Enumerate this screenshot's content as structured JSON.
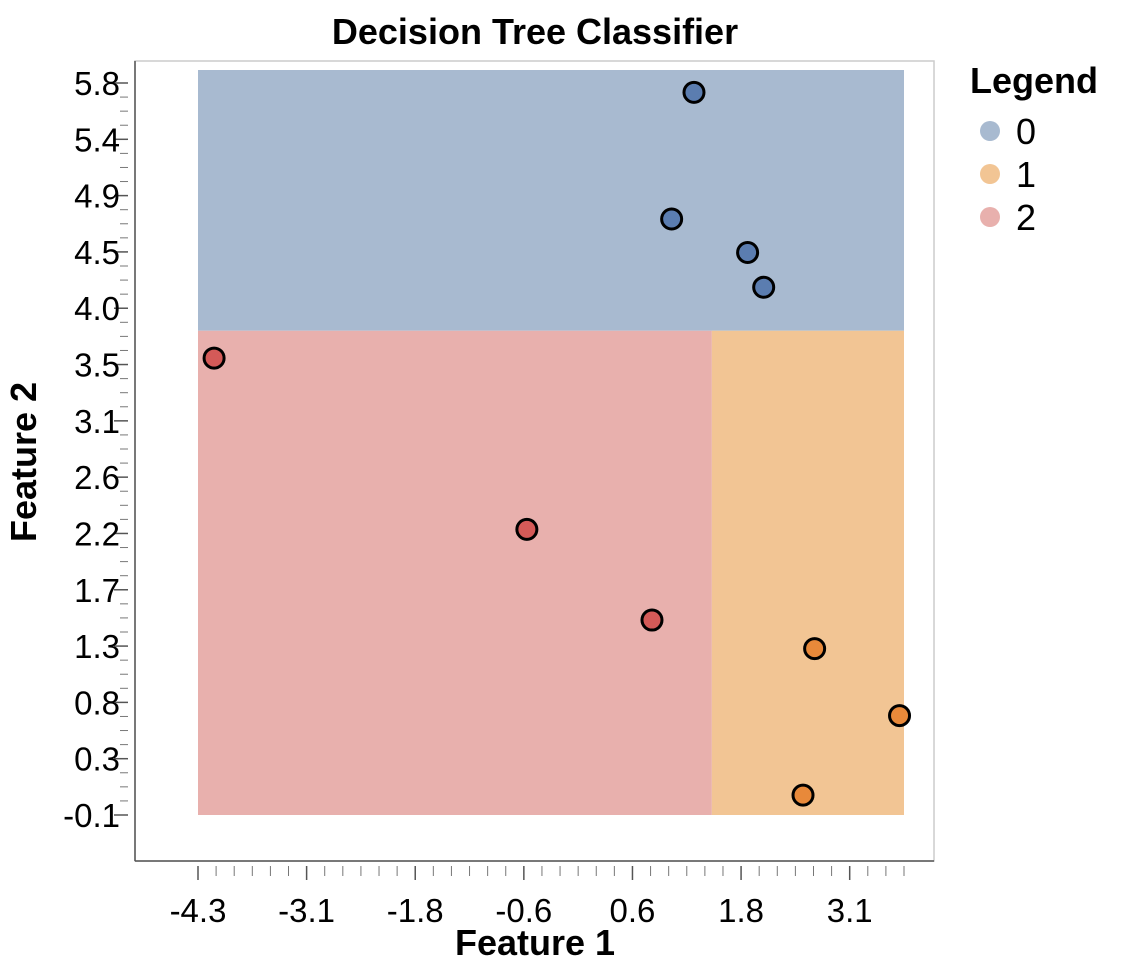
{
  "chart_data": {
    "type": "scatter",
    "title": "Decision Tree Classifier",
    "xlabel": "Feature 1",
    "ylabel": "Feature 2",
    "xlim": [
      -4.3,
      3.6
    ],
    "ylim": [
      -0.1,
      5.9
    ],
    "x_ticks": [
      "-4.3",
      "-3.1",
      "-1.8",
      "-0.6",
      "0.6",
      "1.8",
      "3.1"
    ],
    "y_ticks": [
      "5.8",
      "5.4",
      "4.9",
      "4.5",
      "4.0",
      "3.5",
      "3.1",
      "2.6",
      "2.2",
      "1.7",
      "1.3",
      "0.8",
      "0.3",
      "-0.1"
    ],
    "grid": false,
    "legend": {
      "title": "Legend",
      "placement": "right",
      "entries": [
        {
          "label": "0",
          "color": "#a8bad0"
        },
        {
          "label": "1",
          "color": "#f2c594"
        },
        {
          "label": "2",
          "color": "#e8b0ad"
        }
      ]
    },
    "regions": [
      {
        "class": "0",
        "x": [
          -4.3,
          3.6
        ],
        "y": [
          3.8,
          5.9
        ],
        "color": "#a8bad0"
      },
      {
        "class": "2",
        "x": [
          -4.3,
          1.45
        ],
        "y": [
          -0.1,
          3.8
        ],
        "color": "#e8b0ad"
      },
      {
        "class": "1",
        "x": [
          1.45,
          3.6
        ],
        "y": [
          -0.1,
          3.8
        ],
        "color": "#f2c594"
      }
    ],
    "series": [
      {
        "name": "0",
        "color": "#5b7db0",
        "points": [
          [
            1.25,
            5.72
          ],
          [
            1.0,
            4.7
          ],
          [
            1.85,
            4.43
          ],
          [
            2.03,
            4.15
          ]
        ]
      },
      {
        "name": "1",
        "color": "#e8893a",
        "points": [
          [
            2.6,
            1.24
          ],
          [
            3.55,
            0.7
          ],
          [
            2.47,
            0.06
          ]
        ]
      },
      {
        "name": "2",
        "color": "#d45a58",
        "points": [
          [
            -4.12,
            3.58
          ],
          [
            -0.62,
            2.2
          ],
          [
            0.78,
            1.47
          ]
        ]
      }
    ]
  }
}
